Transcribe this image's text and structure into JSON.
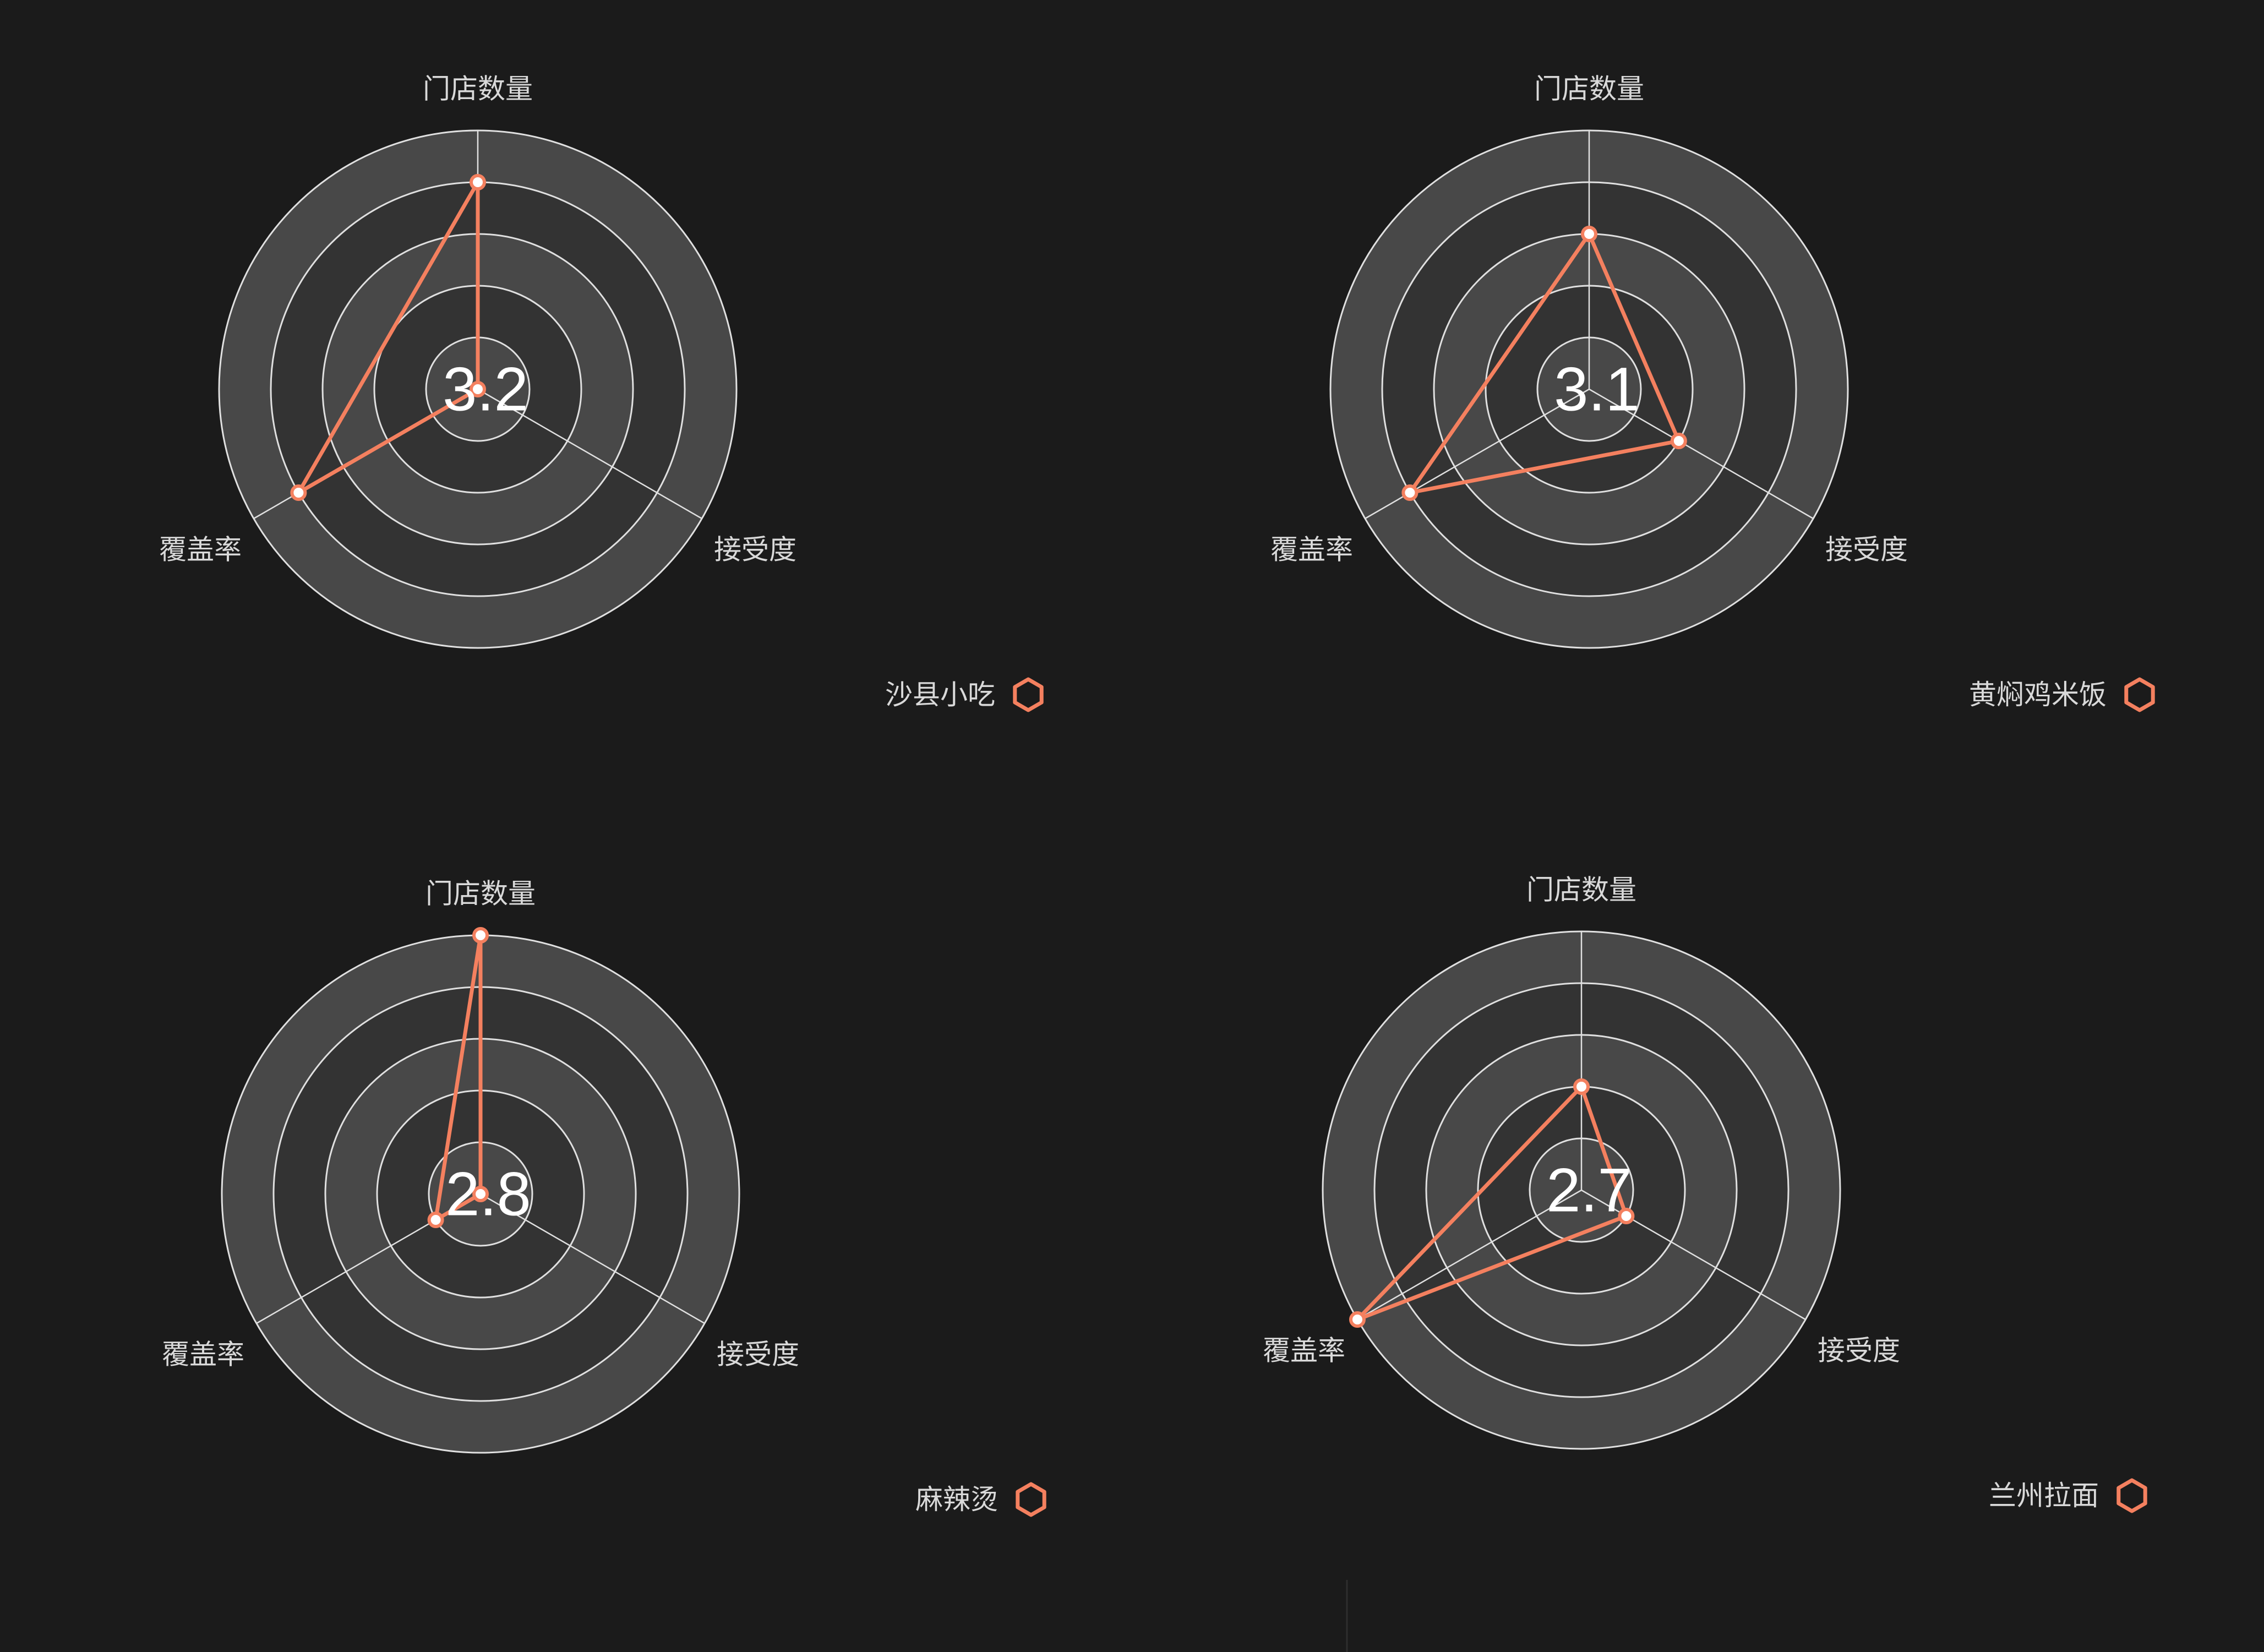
{
  "colors": {
    "background": "#1b1b1b",
    "accent": "#f4805f",
    "band_dark": "#333333",
    "band_light": "#484848",
    "grid": "#e0e0e0",
    "text": "#d9d9d9",
    "center_text": "#ffffff"
  },
  "chart_data": [
    {
      "type": "radar",
      "indicators": [
        "门店数量",
        "接受度",
        "覆盖率"
      ],
      "max": 100,
      "ring_count": 5,
      "center_value": "3.2",
      "series": [
        {
          "name": "沙县小吃",
          "values": [
            80,
            0,
            80
          ],
          "color": "#f4805f"
        }
      ],
      "legend_icon": "hexagon-icon",
      "legend_position": "bottom-right"
    },
    {
      "type": "radar",
      "indicators": [
        "门店数量",
        "接受度",
        "覆盖率"
      ],
      "max": 100,
      "ring_count": 5,
      "center_value": "3.1",
      "series": [
        {
          "name": "黄焖鸡米饭",
          "values": [
            60,
            40,
            80
          ],
          "color": "#f4805f"
        }
      ],
      "legend_icon": "hexagon-icon",
      "legend_position": "bottom-right"
    },
    {
      "type": "radar",
      "indicators": [
        "门店数量",
        "接受度",
        "覆盖率"
      ],
      "max": 100,
      "ring_count": 5,
      "center_value": "2.8",
      "series": [
        {
          "name": "麻辣烫",
          "values": [
            100,
            0,
            20
          ],
          "color": "#f4805f"
        }
      ],
      "legend_icon": "hexagon-icon",
      "legend_position": "bottom-right"
    },
    {
      "type": "radar",
      "indicators": [
        "门店数量",
        "接受度",
        "覆盖率"
      ],
      "max": 100,
      "ring_count": 5,
      "center_value": "2.7",
      "series": [
        {
          "name": "兰州拉面",
          "values": [
            40,
            20,
            100
          ],
          "color": "#f4805f"
        }
      ],
      "legend_icon": "hexagon-icon",
      "legend_position": "bottom-right"
    }
  ]
}
